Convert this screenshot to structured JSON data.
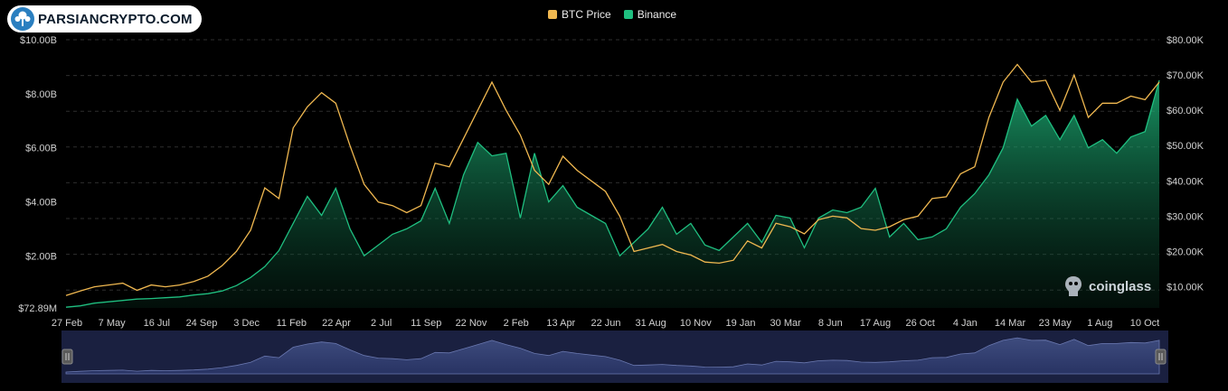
{
  "brand": {
    "name": "PARSIANCRYPTO.COM"
  },
  "watermark": {
    "name": "coinglass"
  },
  "legend": [
    {
      "label": "BTC Price",
      "color": "#f0b850"
    },
    {
      "label": "Binance",
      "color": "#1fbf80"
    }
  ],
  "chart_data": {
    "type": "area",
    "x_tick_labels": [
      "27 Feb",
      "7 May",
      "16 Jul",
      "24 Sep",
      "3 Dec",
      "11 Feb",
      "22 Apr",
      "2 Jul",
      "11 Sep",
      "22 Nov",
      "2 Feb",
      "13 Apr",
      "22 Jun",
      "31 Aug",
      "10 Nov",
      "19 Jan",
      "30 Mar",
      "8 Jun",
      "17 Aug",
      "26 Oct",
      "4 Jan",
      "14 Mar",
      "23 May",
      "1 Aug",
      "10 Oct"
    ],
    "y_left": {
      "ticks": [
        "$72.89M",
        "$2.00B",
        "$4.00B",
        "$6.00B",
        "$8.00B",
        "$10.00B"
      ],
      "min": 0.07289,
      "max": 10,
      "unit": "billion USD"
    },
    "y_right": {
      "ticks": [
        "$10.00K",
        "$20.00K",
        "$30.00K",
        "$40.00K",
        "$50.00K",
        "$60.00K",
        "$70.00K",
        "$80.00K"
      ],
      "min": 4,
      "max": 80,
      "unit": "thousand USD"
    },
    "series": [
      {
        "name": "Binance",
        "axis": "left",
        "color": "#1fbf80",
        "values": [
          0.1,
          0.15,
          0.25,
          0.3,
          0.35,
          0.4,
          0.42,
          0.45,
          0.48,
          0.55,
          0.6,
          0.7,
          0.9,
          1.2,
          1.6,
          2.2,
          3.2,
          4.2,
          3.5,
          4.5,
          3.0,
          2.0,
          2.4,
          2.8,
          3.0,
          3.3,
          4.5,
          3.2,
          5.0,
          6.2,
          5.7,
          5.8,
          3.4,
          5.8,
          4.0,
          4.6,
          3.8,
          3.5,
          3.2,
          2.0,
          2.5,
          3.0,
          3.8,
          2.8,
          3.2,
          2.4,
          2.2,
          2.7,
          3.2,
          2.5,
          3.5,
          3.4,
          2.3,
          3.4,
          3.7,
          3.6,
          3.8,
          4.5,
          2.7,
          3.2,
          2.6,
          2.7,
          3.0,
          3.8,
          4.3,
          5.0,
          6.0,
          7.8,
          6.8,
          7.2,
          6.3,
          7.2,
          6.0,
          6.3,
          5.8,
          6.4,
          6.6,
          8.5
        ]
      },
      {
        "name": "BTC Price",
        "axis": "right",
        "color": "#f0b850",
        "values": [
          7.5,
          8.8,
          10,
          10.5,
          11,
          9,
          10.5,
          10,
          10.5,
          11.5,
          13,
          16,
          20,
          26,
          38,
          35,
          55,
          61,
          65,
          62,
          50,
          39,
          34,
          33,
          31,
          33,
          45,
          44,
          52,
          60,
          68,
          60,
          53,
          43,
          39,
          47,
          43,
          40,
          37,
          30,
          20,
          21,
          22,
          20,
          19,
          17,
          16.7,
          17.5,
          23,
          21,
          28,
          27,
          25,
          29,
          30,
          29.5,
          26.5,
          26,
          27,
          29,
          30,
          35,
          35.5,
          42,
          44,
          58,
          68,
          73,
          68,
          68.5,
          60,
          70,
          58,
          62,
          62,
          64,
          63,
          68
        ]
      }
    ]
  }
}
